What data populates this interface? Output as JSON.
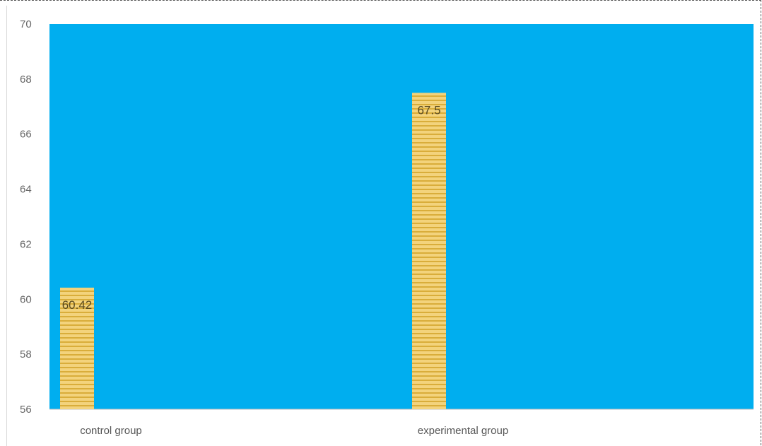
{
  "chart_data": {
    "type": "bar",
    "categories": [
      "control group",
      "experimental group"
    ],
    "values": [
      60.42,
      67.5
    ],
    "data_labels": [
      "60.42",
      "67.5"
    ],
    "title": "",
    "xlabel": "",
    "ylabel": "",
    "ylim": [
      56,
      70
    ],
    "yticks": [
      "56",
      "58",
      "60",
      "62",
      "64",
      "66",
      "68",
      "70"
    ],
    "grid": false,
    "legend": "none",
    "colors": {
      "plot_background": "#00aeef",
      "bar_fill": "#f3d37c",
      "bar_stripe": "#d9ad3a",
      "axis": "#bfbfbf"
    }
  }
}
